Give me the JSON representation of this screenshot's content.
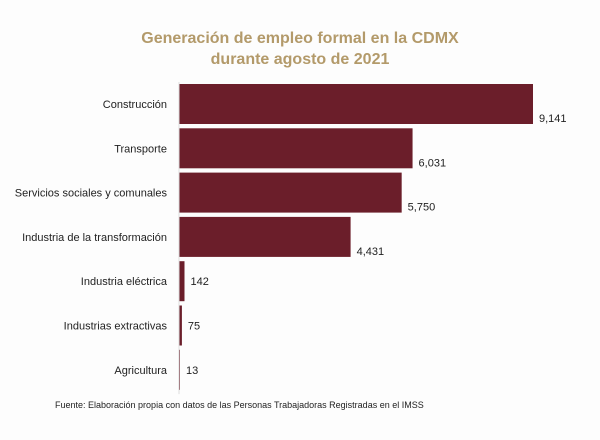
{
  "chart_data": {
    "type": "bar",
    "orientation": "horizontal",
    "title": "Generación de empleo formal en la CDMX",
    "subtitle": "durante agosto de 2021",
    "categories": [
      "Construcción",
      "Transporte",
      "Servicios sociales y comunales",
      "Industria de la transformación",
      "Industria eléctrica",
      "Industrias extractivas",
      "Agricultura"
    ],
    "values": [
      9141,
      6031,
      5750,
      4431,
      142,
      75,
      13
    ],
    "value_labels": [
      "9,141",
      "6,031",
      "5,750",
      "4,431",
      "142",
      "75",
      "13"
    ],
    "bar_color": "#6b1e2a",
    "title_color": "#b39a6a",
    "grid": false,
    "source": "Fuente: Elaboración propia con datos de las Personas Trabajadoras Registradas en el IMSS"
  }
}
